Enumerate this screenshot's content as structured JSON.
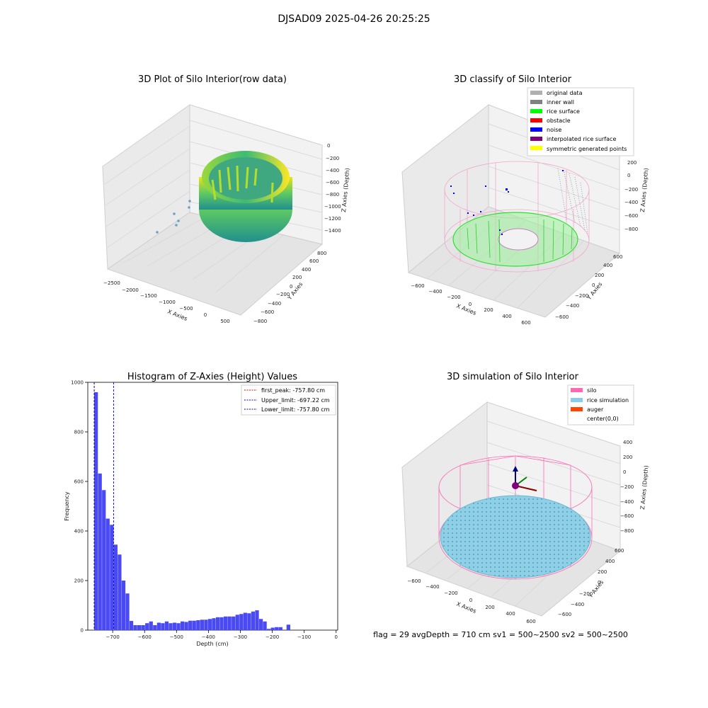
{
  "suptitle": "DJSAD09 2025-04-26 20:25:25",
  "footer": "flag = 29  avgDepth = 710 cm  sv1 = 500~2500  sv2 = 500~2500",
  "colors": {
    "hist_bar": "#4a4af5",
    "first_peak": "#ff0000",
    "limits": "#0000cc",
    "silo": "#ff69b4",
    "rice": "#87ceeb",
    "auger": "#ff4500",
    "inner_wall": "#808080",
    "rice_surface": "#00ff00",
    "noise": "#0000ff"
  },
  "panel_raw": {
    "title": "3D Plot of Silo Interior(row data)",
    "xlabel": "X Axies",
    "ylabel": "Y Axies",
    "zlabel": "Z Axies (Depth)",
    "xticks": [
      "−2500",
      "−2000",
      "−1500",
      "−1000",
      "−500",
      "0",
      "500"
    ],
    "yticks": [
      "−800",
      "−600",
      "−400",
      "−200",
      "0",
      "200",
      "400",
      "600",
      "800"
    ],
    "zticks": [
      "0",
      "−200",
      "−400",
      "−600",
      "−800",
      "−1000",
      "−1200",
      "−1400"
    ],
    "colormap": "viridis"
  },
  "panel_classify": {
    "title": "3D classify of Silo Interior",
    "xlabel": "X Axies",
    "ylabel": "Y Axies",
    "zlabel": "Z Axies (Depth)",
    "xticks": [
      "−600",
      "−400",
      "−200",
      "0",
      "200",
      "400",
      "600"
    ],
    "yticks": [
      "−600",
      "−400",
      "−200",
      "0",
      "200",
      "400",
      "600"
    ],
    "zticks": [
      "200",
      "0",
      "−200",
      "−400",
      "−600",
      "−800"
    ],
    "legend": [
      {
        "label": "original data",
        "color": "#b0b0b0"
      },
      {
        "label": "inner wall",
        "color": "#808080"
      },
      {
        "label": "rice surface",
        "color": "#00ff00"
      },
      {
        "label": "obstacle",
        "color": "#ff0000"
      },
      {
        "label": "noise",
        "color": "#0000ff"
      },
      {
        "label": "interpolated rice surface",
        "color": "#800080"
      },
      {
        "label": "symmetric generated points",
        "color": "#ffff00"
      }
    ],
    "legend_position": "top-right"
  },
  "panel_sim": {
    "title": "3D simulation of Silo Interior",
    "xlabel": "X Axies",
    "ylabel": "Y Axies",
    "zlabel": "Z Axies (Depth)",
    "xticks": [
      "−600",
      "−400",
      "−200",
      "0",
      "200",
      "400",
      "600"
    ],
    "yticks": [
      "−600",
      "−400",
      "−200",
      "0",
      "200",
      "400",
      "600"
    ],
    "zticks": [
      "400",
      "200",
      "0",
      "−200",
      "−400",
      "−600",
      "−800"
    ],
    "legend": [
      {
        "label": "silo",
        "color": "#ff69b4"
      },
      {
        "label": "rice simulation",
        "color": "#87ceeb"
      },
      {
        "label": "auger",
        "color": "#ff4500"
      },
      {
        "label": "center(0,0)",
        "color": "#ffffff"
      }
    ],
    "legend_position": "top-right"
  },
  "chart_data": {
    "type": "bar",
    "title": "Histogram of Z-Axies (Height) Values",
    "xlabel": "Depth (cm)",
    "ylabel": "Frequency",
    "xlim": [
      -778,
      5
    ],
    "ylim": [
      0,
      1000
    ],
    "xticks": [
      -700,
      -600,
      -500,
      -400,
      -300,
      -200,
      -100,
      0
    ],
    "xtick_labels": [
      "−700",
      "−600",
      "−500",
      "−400",
      "−300",
      "−200",
      "−100",
      "0"
    ],
    "yticks": [
      0,
      200,
      400,
      600,
      800,
      1000
    ],
    "bin_width": 12.3,
    "bin_start": -758,
    "values": [
      960,
      632,
      565,
      450,
      425,
      345,
      305,
      200,
      148,
      37,
      20,
      20,
      20,
      28,
      35,
      20,
      30,
      28,
      35,
      28,
      30,
      28,
      35,
      33,
      38,
      38,
      40,
      42,
      42,
      45,
      48,
      52,
      52,
      55,
      55,
      55,
      62,
      65,
      70,
      68,
      75,
      80,
      45,
      35,
      5,
      10,
      12,
      12,
      0,
      22
    ],
    "lines": [
      {
        "label": "first_peak: -757.80 cm",
        "x": -757.8,
        "color": "#ff0000"
      },
      {
        "label": "Upper_limit: -697.22 cm",
        "x": -697.22,
        "color": "#0000cc"
      },
      {
        "label": "Lower_limit: -757.80 cm",
        "x": -757.8,
        "color": "#0000cc"
      }
    ],
    "legend_position": "top-right",
    "grid": false
  }
}
